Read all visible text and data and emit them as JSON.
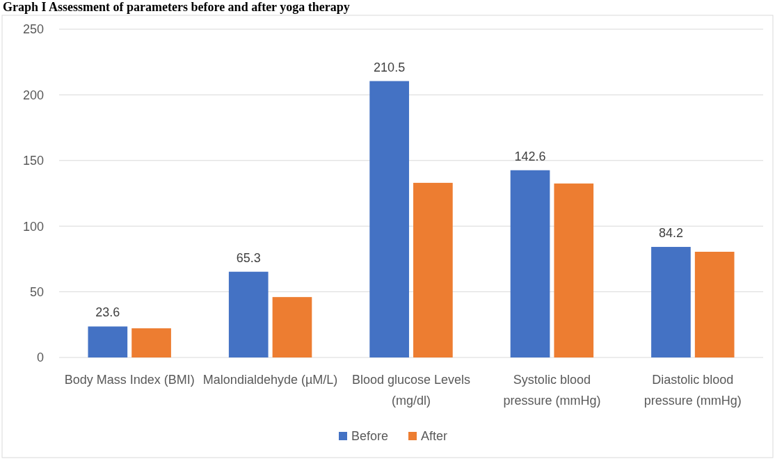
{
  "chart_data": {
    "type": "bar",
    "title": "Graph I Assessment of parameters before and after yoga therapy",
    "categories": [
      "Body Mass Index (BMI)",
      "Malondialdehyde (µM/L)",
      "Blood glucose Levels (mg/dl)",
      "Systolic blood pressure (mmHg)",
      "Diastolic blood pressure (mmHg)"
    ],
    "series": [
      {
        "name": "Before",
        "color": "#4472c4",
        "values": [
          23.6,
          65.3,
          210.5,
          142.6,
          84.2
        ],
        "value_labels": [
          "23.6",
          "65.3",
          "210.5",
          "142.6",
          "84.2"
        ]
      },
      {
        "name": "After",
        "color": "#ed7d31",
        "values": [
          22.2,
          46,
          133,
          132.5,
          80.5
        ]
      }
    ],
    "ylim": [
      0,
      250
    ],
    "yticks": [
      0,
      50,
      100,
      150,
      200,
      250
    ],
    "grid": "y",
    "legend": "bottom"
  }
}
